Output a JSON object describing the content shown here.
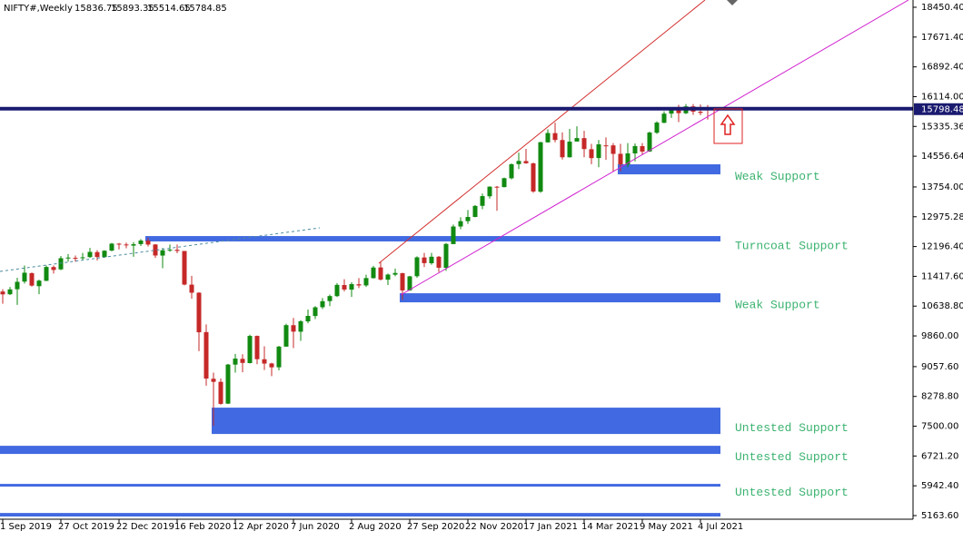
{
  "chart_data": {
    "type": "candlestick",
    "title": "NIFTY#,Weekly",
    "categories": [
      "1 Sep 2019",
      null,
      null,
      null,
      null,
      null,
      null,
      null,
      "27 Oct 2019",
      null,
      null,
      null,
      null,
      null,
      null,
      null,
      "22 Dec 2019",
      null,
      null,
      null,
      null,
      null,
      null,
      null,
      "16 Feb 2020",
      null,
      null,
      null,
      null,
      null,
      null,
      null,
      "12 Apr 2020",
      null,
      null,
      null,
      null,
      null,
      null,
      null,
      "7 Jun 2020",
      null,
      null,
      null,
      null,
      null,
      null,
      null,
      "2 Aug 2020",
      null,
      null,
      null,
      null,
      null,
      null,
      null,
      "27 Sep 2020",
      null,
      null,
      null,
      null,
      null,
      null,
      null,
      "22 Nov 2020",
      null,
      null,
      null,
      null,
      null,
      null,
      null,
      "17 Jan 2021",
      null,
      null,
      null,
      null,
      null,
      null,
      null,
      "14 Mar 2021",
      null,
      null,
      null,
      null,
      null,
      null,
      null,
      "9 May 2021",
      null,
      null,
      null,
      null,
      null,
      null,
      null,
      "4 Jul 2021",
      null
    ],
    "open": [
      11020,
      10950,
      11080,
      11280,
      11500,
      11160,
      11300,
      11660,
      11600,
      11900,
      11900,
      11910,
      11920,
      12050,
      11920,
      12090,
      12270,
      12250,
      12220,
      12260,
      12350,
      12250,
      11960,
      12100,
      12110,
      12080,
      11200,
      10990,
      9960,
      8740,
      8660,
      8090,
      9110,
      9260,
      9150,
      9860,
      9250,
      9140,
      9040,
      9580,
      10140,
      9970,
      10240,
      10380,
      10610,
      10770,
      10900,
      11190,
      11070,
      11210,
      11180,
      11370,
      11650,
      11330,
      11460,
      11500,
      11050,
      11420,
      11910,
      11760,
      11930,
      11640,
      12260,
      12720,
      12860,
      12970,
      13260,
      13510,
      13760,
      13750,
      13980,
      14350,
      14430,
      14370,
      13630,
      14920,
      15160,
      14980,
      14530,
      14940,
      15030,
      14740,
      14510,
      14840,
      14840,
      14620,
      14340,
      14630,
      14820,
      14680,
      15170,
      15430,
      15670,
      15800,
      15680,
      15860,
      15720,
      15836.75
    ],
    "high": [
      11080,
      11140,
      11380,
      11700,
      11520,
      11330,
      11700,
      11700,
      11950,
      12000,
      11960,
      12030,
      12160,
      12100,
      12100,
      12290,
      12290,
      12300,
      12310,
      12390,
      12430,
      12260,
      12160,
      12250,
      12250,
      12080,
      11430,
      11000,
      10160,
      8900,
      8750,
      9130,
      9390,
      9380,
      9890,
      9870,
      9590,
      9160,
      9600,
      10180,
      10330,
      10270,
      10550,
      10640,
      10850,
      10940,
      11240,
      11340,
      11260,
      11370,
      11460,
      11690,
      11800,
      11490,
      11620,
      11510,
      11430,
      11940,
      12030,
      12030,
      11950,
      12290,
      12770,
      12960,
      13150,
      13280,
      13580,
      13770,
      13780,
      14000,
      14370,
      14650,
      14750,
      14390,
      14930,
      15260,
      15430,
      15180,
      15270,
      15340,
      15220,
      14880,
      14980,
      15050,
      14900,
      14880,
      14900,
      14890,
      14900,
      15200,
      15470,
      15730,
      15840,
      15900,
      15920,
      15920,
      15910,
      15893.35
    ],
    "low": [
      10700,
      10930,
      10670,
      11230,
      11150,
      10950,
      11290,
      11490,
      11580,
      11800,
      11800,
      11850,
      11900,
      11830,
      11900,
      12070,
      12120,
      12150,
      11930,
      12210,
      12200,
      11900,
      11630,
      12060,
      12020,
      11180,
      10830,
      9460,
      8560,
      7510,
      8060,
      8080,
      8900,
      8910,
      9140,
      9120,
      8970,
      8810,
      8960,
      9580,
      9540,
      9730,
      10190,
      10300,
      10560,
      10640,
      10880,
      11020,
      10880,
      11110,
      11140,
      11360,
      11310,
      11190,
      11420,
      10800,
      11040,
      11380,
      11660,
      11720,
      11530,
      11560,
      12260,
      12650,
      12790,
      12960,
      13170,
      13450,
      13130,
      13740,
      13950,
      14220,
      14360,
      13600,
      13600,
      14910,
      14920,
      14470,
      14520,
      14950,
      14530,
      14350,
      14270,
      14460,
      14150,
      14160,
      14270,
      14420,
      14590,
      14670,
      15140,
      15420,
      15560,
      15450,
      15660,
      15640,
      15630,
      15514.65
    ],
    "close": [
      10946,
      11076,
      11274,
      11512,
      11175,
      11305,
      11662,
      11584,
      11891,
      11908,
      11895,
      11914,
      12056,
      11922,
      12087,
      12272,
      12246,
      12227,
      12257,
      12352,
      12248,
      11962,
      12098,
      12113,
      12081,
      11202,
      10989,
      9955,
      8745,
      8660,
      8084,
      9112,
      9267,
      9154,
      9860,
      9252,
      9137,
      9039,
      9580,
      10142,
      9972,
      10244,
      10383,
      10608,
      10768,
      10902,
      11194,
      11073,
      11214,
      11178,
      11372,
      11647,
      11333,
      11464,
      11505,
      11050,
      11417,
      11914,
      11762,
      11930,
      11642,
      12264,
      12720,
      12859,
      12969,
      13258,
      13514,
      13761,
      13749,
      13982,
      14347,
      14434,
      14372,
      13635,
      14924,
      15163,
      14982,
      14529,
      14938,
      15031,
      14744,
      14507,
      14867,
      14835,
      14618,
      14341,
      14631,
      14823,
      14678,
      15175,
      15436,
      15670,
      15799,
      15683,
      15860,
      15722,
      15690,
      15784.85
    ],
    "up_color": "#118a11",
    "down_color": "#c62828",
    "ylim": [
      5069,
      18640
    ],
    "yticks": [
      {
        "value": 18450.4,
        "label": "18450.40"
      },
      {
        "value": 17671.4,
        "label": "17671.40"
      },
      {
        "value": 16892.4,
        "label": "16892.40"
      },
      {
        "value": 16114,
        "label": "16114.00"
      },
      {
        "value": 15335.36,
        "label": "15335.36"
      },
      {
        "value": 14556.64,
        "label": "14556.64"
      },
      {
        "value": 13754,
        "label": "13754.00"
      },
      {
        "value": 12975.28,
        "label": "12975.28"
      },
      {
        "value": 12196.4,
        "label": "12196.40"
      },
      {
        "value": 11417.6,
        "label": "11417.60"
      },
      {
        "value": 10638.8,
        "label": "10638.80"
      },
      {
        "value": 9860,
        "label": "9860.00"
      },
      {
        "value": 9057.6,
        "label": "9057.60"
      },
      {
        "value": 8278.8,
        "label": "8278.80"
      },
      {
        "value": 7500,
        "label": "7500.00"
      },
      {
        "value": 6721.2,
        "label": "6721.20"
      },
      {
        "value": 5942.4,
        "label": "5942.40"
      },
      {
        "value": 5163.6,
        "label": "5163.60"
      }
    ],
    "current_price": 15798.48,
    "zone_color": "#4169e1",
    "zones": [
      {
        "label": "Weak Support",
        "low": 14083,
        "high": 14345
      },
      {
        "label": "Turncoat Support",
        "low": 12330,
        "high": 12470
      },
      {
        "label": "Weak Support",
        "low": 10738,
        "high": 10975
      },
      {
        "label": "Untested Support",
        "low": 7297,
        "high": 7985
      },
      {
        "label": "Untested Support",
        "low": 6775,
        "high": 6988
      },
      {
        "label": "Untested Support",
        "low": 5921,
        "high": 5992
      },
      {
        "low": 5140,
        "high": 5232
      }
    ]
  }
}
